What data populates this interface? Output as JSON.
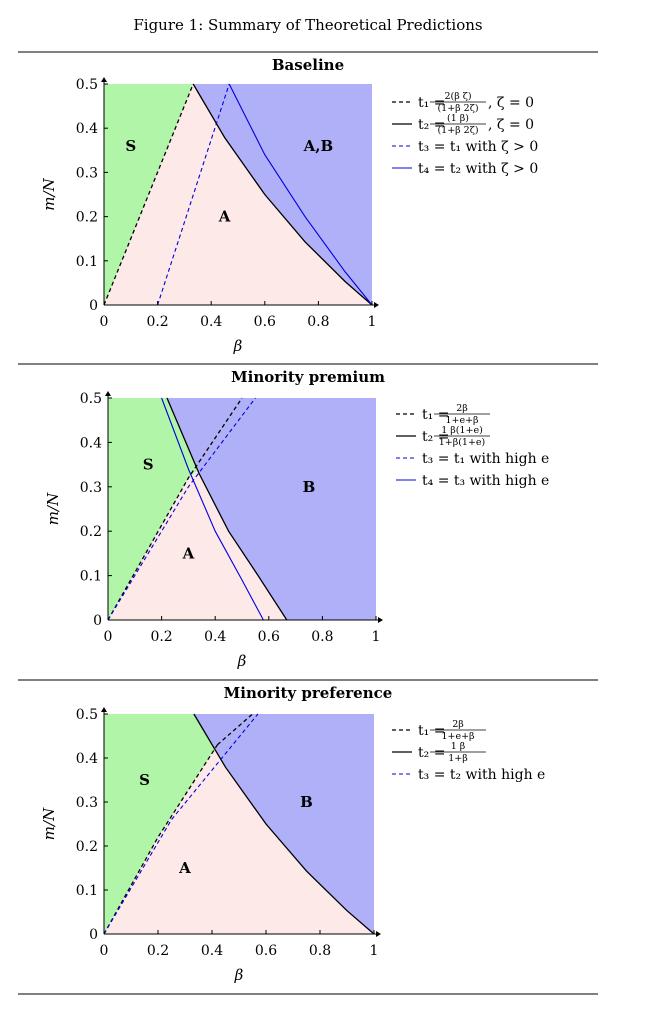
{
  "figure_title": "Figure 1: Summary of Theoretical Predictions",
  "colors": {
    "S": "#b0f5a8",
    "A": "#fde9e8",
    "B": "#b0b0f8",
    "black": "#000000",
    "blue": "#0000dd"
  },
  "chart_data": [
    {
      "type": "area",
      "title": "Baseline",
      "xlabel": "β",
      "ylabel": "m/N",
      "xlim": [
        0,
        1
      ],
      "ylim": [
        0,
        0.5
      ],
      "x_ticks": [
        "0",
        "0.2",
        "0.4",
        "0.6",
        "0.8",
        "1"
      ],
      "y_ticks": [
        "0",
        "0.1",
        "0.2",
        "0.3",
        "0.4",
        "0.5"
      ],
      "region_labels": [
        "S",
        "A",
        "A,B"
      ],
      "regions": {
        "S": {
          "label": "S",
          "at": [
            0.1,
            0.36
          ]
        },
        "A": {
          "label": "A",
          "at": [
            0.45,
            0.2
          ]
        },
        "B": {
          "label": "A,B",
          "at": [
            0.8,
            0.36
          ]
        }
      },
      "series": [
        {
          "name": "t1",
          "style": "black-dashed",
          "legend_lhs": "t₁ =",
          "legend_frac_num": "2(β  ζ)",
          "legend_frac_den": "(1+β  2ζ)",
          "legend_tail": ", ζ = 0",
          "points": [
            [
              0,
              0
            ],
            [
              0.333,
              0.5
            ]
          ]
        },
        {
          "name": "t2",
          "style": "black-solid",
          "legend_lhs": "t₂ =",
          "legend_frac_num": "(1  β)",
          "legend_frac_den": "(1+β  2ζ)",
          "legend_tail": ", ζ = 0",
          "points": [
            [
              0.333,
              0.5
            ],
            [
              0.45,
              0.379
            ],
            [
              0.6,
              0.25
            ],
            [
              0.75,
              0.143
            ],
            [
              0.9,
              0.053
            ],
            [
              1,
              0
            ]
          ]
        },
        {
          "name": "t3",
          "style": "blue-dashed",
          "legend_lhs": "t₃ = t₁ with ζ > 0",
          "points": [
            [
              0.2,
              0
            ],
            [
              0.467,
              0.5
            ]
          ]
        },
        {
          "name": "t4",
          "style": "blue-solid",
          "legend_lhs": "t₄ = t₂ with ζ > 0",
          "points": [
            [
              0.467,
              0.5
            ],
            [
              0.6,
              0.34
            ],
            [
              0.75,
              0.2
            ],
            [
              0.9,
              0.075
            ],
            [
              1,
              0
            ]
          ]
        }
      ],
      "region_polygons": {
        "S": [
          [
            0,
            0
          ],
          [
            0.333,
            0.5
          ],
          [
            0,
            0.5
          ]
        ],
        "B": [
          [
            0.333,
            0.5
          ],
          [
            0.45,
            0.379
          ],
          [
            0.6,
            0.25
          ],
          [
            0.75,
            0.143
          ],
          [
            0.9,
            0.053
          ],
          [
            1,
            0
          ],
          [
            1,
            0.5
          ]
        ]
      }
    },
    {
      "type": "area",
      "title": "Minority premium",
      "xlabel": "β",
      "ylabel": "m/N",
      "xlim": [
        0,
        1
      ],
      "ylim": [
        0,
        0.5
      ],
      "x_ticks": [
        "0",
        "0.2",
        "0.4",
        "0.6",
        "0.8",
        "1"
      ],
      "y_ticks": [
        "0",
        "0.1",
        "0.2",
        "0.3",
        "0.4",
        "0.5"
      ],
      "region_labels": [
        "S",
        "A",
        "B"
      ],
      "regions": {
        "S": {
          "label": "S",
          "at": [
            0.15,
            0.35
          ]
        },
        "A": {
          "label": "A",
          "at": [
            0.3,
            0.15
          ]
        },
        "B": {
          "label": "B",
          "at": [
            0.75,
            0.3
          ]
        }
      },
      "series": [
        {
          "name": "t1",
          "style": "black-dashed",
          "legend_lhs": "t₁ =",
          "legend_frac_num": "2β",
          "legend_frac_den": "1+e+β",
          "legend_tail": "",
          "points": [
            [
              0,
              0
            ],
            [
              0.3,
              0.32
            ],
            [
              0.5,
              0.5
            ]
          ]
        },
        {
          "name": "t2",
          "style": "black-solid",
          "legend_lhs": "t₂ =",
          "legend_frac_num": "1  β(1+e)",
          "legend_frac_den": "1+β(1+e)",
          "legend_tail": "",
          "points": [
            [
              0.22,
              0.5
            ],
            [
              0.34,
              0.33
            ],
            [
              0.45,
              0.2
            ],
            [
              0.56,
              0.1
            ],
            [
              0.667,
              0
            ]
          ]
        },
        {
          "name": "t3",
          "style": "blue-dashed",
          "legend_lhs": "t₃ = t₁ with high e",
          "points": [
            [
              0,
              0
            ],
            [
              0.3,
              0.3
            ],
            [
              0.55,
              0.5
            ]
          ]
        },
        {
          "name": "t4",
          "style": "blue-solid",
          "legend_lhs": "t₄ = t₃ with high e",
          "points": [
            [
              0.2,
              0.5
            ],
            [
              0.3,
              0.34
            ],
            [
              0.4,
              0.2
            ],
            [
              0.5,
              0.09
            ],
            [
              0.58,
              0
            ]
          ]
        }
      ],
      "region_polygons": {
        "S": [
          [
            0,
            0
          ],
          [
            0.3,
            0.32
          ],
          [
            0.34,
            0.34
          ],
          [
            0.22,
            0.5
          ],
          [
            0,
            0.5
          ]
        ],
        "B": [
          [
            0.22,
            0.5
          ],
          [
            0.34,
            0.33
          ],
          [
            0.45,
            0.2
          ],
          [
            0.56,
            0.1
          ],
          [
            0.667,
            0
          ],
          [
            1,
            0
          ],
          [
            1,
            0.5
          ]
        ]
      }
    },
    {
      "type": "area",
      "title": "Minority preference",
      "xlabel": "β",
      "ylabel": "m/N",
      "xlim": [
        0,
        1
      ],
      "ylim": [
        0,
        0.5
      ],
      "x_ticks": [
        "0",
        "0.2",
        "0.4",
        "0.6",
        "0.8",
        "1"
      ],
      "y_ticks": [
        "0",
        "0.1",
        "0.2",
        "0.3",
        "0.4",
        "0.5"
      ],
      "region_labels": [
        "S",
        "A",
        "B"
      ],
      "regions": {
        "S": {
          "label": "S",
          "at": [
            0.15,
            0.35
          ]
        },
        "A": {
          "label": "A",
          "at": [
            0.3,
            0.15
          ]
        },
        "B": {
          "label": "B",
          "at": [
            0.75,
            0.3
          ]
        }
      },
      "series": [
        {
          "name": "t1",
          "style": "black-dashed",
          "legend_lhs": "t₁ =",
          "legend_frac_num": "2β",
          "legend_frac_den": "1+e+β",
          "legend_tail": "",
          "points": [
            [
              0,
              0
            ],
            [
              0.2,
              0.22
            ],
            [
              0.42,
              0.43
            ]
          ]
        },
        {
          "name": "t2",
          "style": "black-solid",
          "legend_lhs": "t₂ =",
          "legend_frac_num": "1  β",
          "legend_frac_den": "1+β",
          "legend_tail": "",
          "points": [
            [
              0.333,
              0.5
            ],
            [
              0.45,
              0.379
            ],
            [
              0.6,
              0.25
            ],
            [
              0.75,
              0.143
            ],
            [
              0.9,
              0.053
            ],
            [
              1,
              0
            ]
          ]
        },
        {
          "name": "t3",
          "style": "blue-dashed",
          "legend_lhs": "t₃ = t₂ with high e",
          "points": [
            [
              0,
              0
            ],
            [
              0.25,
              0.26
            ],
            [
              0.57,
              0.5
            ]
          ]
        }
      ],
      "extra_lines": [
        {
          "name": "t1-upper",
          "style": "black-dashed",
          "points": [
            [
              0.42,
              0.43
            ],
            [
              0.55,
              0.5
            ]
          ]
        }
      ],
      "region_polygons": {
        "S": [
          [
            0,
            0
          ],
          [
            0.2,
            0.22
          ],
          [
            0.42,
            0.43
          ],
          [
            0.45,
            0.41
          ],
          [
            0.333,
            0.5
          ],
          [
            0,
            0.5
          ]
        ],
        "B": [
          [
            0.333,
            0.5
          ],
          [
            0.45,
            0.379
          ],
          [
            0.6,
            0.25
          ],
          [
            0.75,
            0.143
          ],
          [
            0.9,
            0.053
          ],
          [
            1,
            0
          ],
          [
            1,
            0.5
          ]
        ]
      }
    }
  ]
}
